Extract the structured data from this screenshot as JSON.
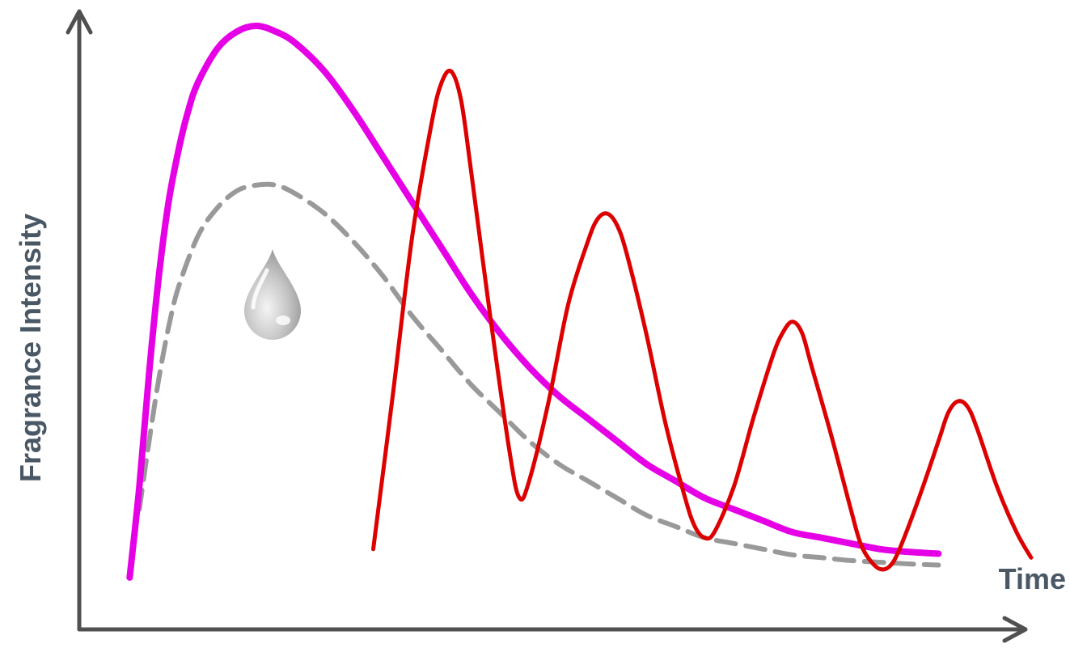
{
  "chart_data": {
    "type": "line",
    "title": "",
    "xlabel": "Time",
    "ylabel": "Fragrance Intensity",
    "xlim": [
      0,
      100
    ],
    "ylim": [
      0,
      100
    ],
    "grid": false,
    "legend": "none",
    "x_ticks": "none",
    "y_ticks": "none",
    "series": [
      {
        "color": "#e600e6",
        "style": "solid",
        "points": [
          [
            5,
            2
          ],
          [
            6,
            18
          ],
          [
            7,
            38
          ],
          [
            8,
            55
          ],
          [
            9,
            68
          ],
          [
            10,
            77
          ],
          [
            11,
            84
          ],
          [
            12,
            89
          ],
          [
            14,
            95
          ],
          [
            16,
            98
          ],
          [
            18,
            99
          ],
          [
            20,
            98
          ],
          [
            22,
            96
          ],
          [
            25,
            91
          ],
          [
            28,
            84
          ],
          [
            31,
            76
          ],
          [
            34,
            68
          ],
          [
            37,
            60
          ],
          [
            40,
            52
          ],
          [
            43,
            45
          ],
          [
            46,
            39
          ],
          [
            49,
            34
          ],
          [
            52,
            30
          ],
          [
            55,
            26
          ],
          [
            58,
            22
          ],
          [
            61,
            19
          ],
          [
            64,
            16
          ],
          [
            67,
            14
          ],
          [
            70,
            12
          ],
          [
            73,
            10
          ],
          [
            76,
            9
          ],
          [
            79,
            8
          ],
          [
            82,
            7
          ],
          [
            85,
            6.5
          ],
          [
            88,
            6.2
          ]
        ]
      },
      {
        "color": "#999999",
        "style": "dashed",
        "points": [
          [
            6,
            14
          ],
          [
            7,
            26
          ],
          [
            8,
            37
          ],
          [
            9,
            46
          ],
          [
            10,
            53
          ],
          [
            12,
            62
          ],
          [
            14,
            67
          ],
          [
            16,
            70
          ],
          [
            18,
            71
          ],
          [
            20,
            71
          ],
          [
            22,
            69.5
          ],
          [
            25,
            66
          ],
          [
            28,
            61
          ],
          [
            31,
            55
          ],
          [
            34,
            48
          ],
          [
            37,
            42
          ],
          [
            40,
            36
          ],
          [
            43,
            31
          ],
          [
            46,
            26
          ],
          [
            49,
            22
          ],
          [
            52,
            19
          ],
          [
            55,
            16
          ],
          [
            58,
            13
          ],
          [
            61,
            11
          ],
          [
            64,
            9
          ],
          [
            67,
            8
          ],
          [
            70,
            7
          ],
          [
            73,
            6
          ],
          [
            76,
            5.5
          ],
          [
            79,
            5
          ],
          [
            82,
            4.7
          ],
          [
            85,
            4.4
          ],
          [
            88,
            4.2
          ]
        ]
      },
      {
        "color": "#dd0000",
        "style": "solid",
        "points": [
          [
            30,
            7
          ],
          [
            32,
            34
          ],
          [
            34,
            62
          ],
          [
            36,
            82
          ],
          [
            37,
            89
          ],
          [
            38,
            91
          ],
          [
            39,
            86
          ],
          [
            40,
            74
          ],
          [
            42,
            48
          ],
          [
            44,
            24
          ],
          [
            45,
            16
          ],
          [
            46,
            19
          ],
          [
            48,
            33
          ],
          [
            50,
            50
          ],
          [
            52,
            61
          ],
          [
            53,
            65
          ],
          [
            54,
            66
          ],
          [
            55,
            64
          ],
          [
            56,
            59
          ],
          [
            58,
            45
          ],
          [
            60,
            29
          ],
          [
            62,
            16
          ],
          [
            63,
            11
          ],
          [
            64,
            9
          ],
          [
            65,
            10
          ],
          [
            67,
            18
          ],
          [
            69,
            30
          ],
          [
            71,
            41
          ],
          [
            72,
            45
          ],
          [
            73,
            47
          ],
          [
            74,
            45
          ],
          [
            75,
            39
          ],
          [
            77,
            27
          ],
          [
            79,
            14
          ],
          [
            80,
            8
          ],
          [
            81,
            5
          ],
          [
            82,
            3.5
          ],
          [
            83,
            4
          ],
          [
            84,
            7
          ],
          [
            86,
            16
          ],
          [
            88,
            26
          ],
          [
            89,
            31
          ],
          [
            90,
            33
          ],
          [
            91,
            32
          ],
          [
            92,
            28
          ],
          [
            94,
            18
          ],
          [
            96,
            10
          ],
          [
            97.5,
            5.5
          ]
        ]
      }
    ]
  }
}
